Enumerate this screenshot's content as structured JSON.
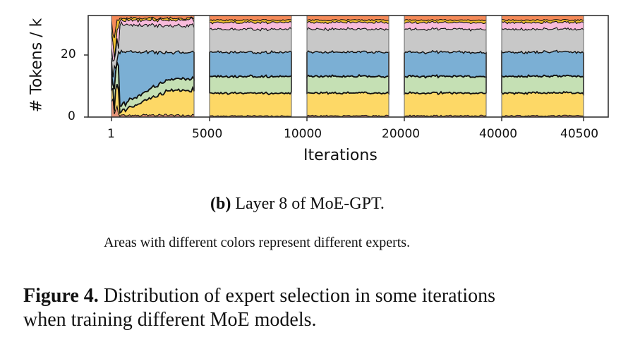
{
  "chart_data": {
    "type": "area",
    "subtype": "stacked-area (broken x-axis panels)",
    "title": "",
    "xlabel": "Iterations",
    "ylabel": "# Tokens / k",
    "ylim": [
      0,
      32.7
    ],
    "yticks": [
      0,
      20
    ],
    "xtick_labels": [
      "1",
      "5000",
      "10000",
      "20000",
      "40000",
      "40500"
    ],
    "grid": false,
    "legend": "none",
    "panels": [
      {
        "range": "1–~4500",
        "note": "early training, highly imbalanced and volatile"
      },
      {
        "range": "~5000–~9000"
      },
      {
        "range": "~10000–~18000"
      },
      {
        "range": "~20000–~38000"
      },
      {
        "range": "~40000–40500"
      }
    ],
    "series": [
      {
        "name": "Expert (salmon, bottom)",
        "color": "#e8967a",
        "approx_values_stable": 0.4
      },
      {
        "name": "Expert (yellow)",
        "color": "#fdd866",
        "approx_values_stable": 7.5
      },
      {
        "name": "Expert (green)",
        "color": "#c5e0b4",
        "approx_values_stable": 5.5
      },
      {
        "name": "Expert (blue)",
        "color": "#7bafd4",
        "approx_values_stable": 8.0
      },
      {
        "name": "Expert (gray)",
        "color": "#c8c8c8",
        "approx_values_stable": 7.5
      },
      {
        "name": "Expert (pink)",
        "color": "#f8bbdb",
        "approx_values_stable": 2.2
      },
      {
        "name": "Expert (gold)",
        "color": "#f0c030",
        "approx_values_stable": 0.8
      },
      {
        "name": "Expert (orange)",
        "color": "#f58a58",
        "approx_values_stable": 1.5
      }
    ],
    "early_panel_series_extra_colors": [
      "#66c2a5",
      "#8da0cb",
      "#a6d854",
      "#e5c494"
    ]
  },
  "axes": {
    "ylabel": "# Tokens / k",
    "xlabel": "Iterations",
    "yticks": [
      "0",
      "20"
    ],
    "xticks": [
      "1",
      "5000",
      "10000",
      "20000",
      "40000",
      "40500"
    ]
  },
  "captions": {
    "sub_label": "(b)",
    "sub_text": " Layer 8 of MoE-GPT.",
    "note": "Areas with different colors represent different experts.",
    "figure_label": "Figure 4.",
    "figure_line1": " Distribution of expert selection in some iterations",
    "figure_line2": "when training different MoE models."
  }
}
